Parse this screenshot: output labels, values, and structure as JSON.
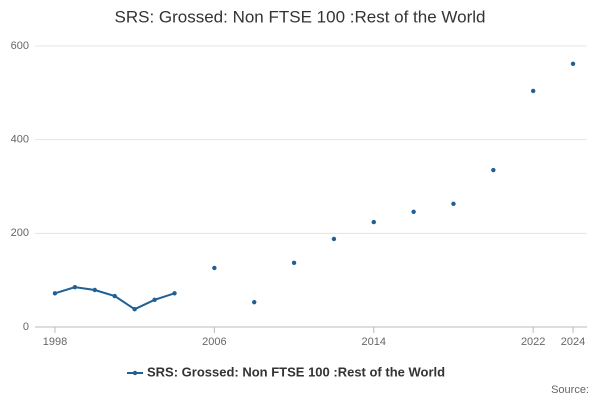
{
  "chart_data": {
    "type": "line",
    "title": "SRS: Grossed: Non FTSE 100 :Rest of the World",
    "x": [
      1998,
      1999,
      2000,
      2001,
      2002,
      2003,
      2004,
      2005,
      2006,
      2007,
      2008,
      2009,
      2010,
      2011,
      2012,
      2013,
      2014,
      2015,
      2016,
      2017,
      2018,
      2019,
      2020,
      2021,
      2022,
      2023,
      2024
    ],
    "series": [
      {
        "name": "SRS: Grossed: Non FTSE 100 :Rest of the World",
        "color": "#206095",
        "values": [
          72,
          85,
          79,
          66,
          38,
          58,
          72,
          null,
          126,
          null,
          53,
          null,
          137,
          null,
          188,
          null,
          224,
          null,
          246,
          null,
          263,
          null,
          335,
          null,
          504,
          null,
          562
        ]
      }
    ],
    "xlim": [
      1997.5,
      2024.5
    ],
    "xticks": [
      1998,
      2006,
      2014,
      2022,
      2024
    ],
    "ylim": [
      0,
      600
    ],
    "yticks": [
      0,
      200,
      400,
      600
    ],
    "grid": true,
    "source": "Source:"
  }
}
